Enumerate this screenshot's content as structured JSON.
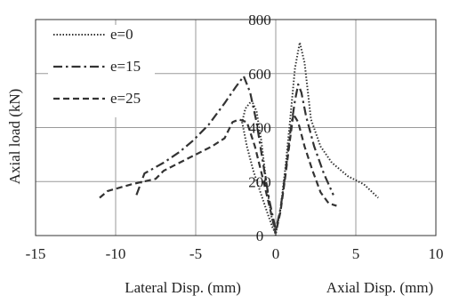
{
  "chart_data": {
    "type": "line",
    "title": "",
    "ylabel": "Axial load (kN)",
    "xlabel_left": "Lateral Disp. (mm)",
    "xlabel_right": "Axial Disp. (mm)",
    "xlim": [
      -15,
      10
    ],
    "ylim": [
      0,
      800
    ],
    "xticks": [
      -15,
      -10,
      -5,
      0,
      5,
      10
    ],
    "yticks": [
      0,
      200,
      400,
      600,
      800
    ],
    "grid": true,
    "legend_position": "top-left",
    "series": [
      {
        "name": "e=0",
        "style": "dotted",
        "color": "#333333",
        "points": [
          [
            0,
            0
          ],
          [
            -0.3,
            80
          ],
          [
            -0.6,
            200
          ],
          [
            -0.9,
            350
          ],
          [
            -1.2,
            460
          ],
          [
            -1.5,
            500
          ],
          [
            -1.9,
            470
          ],
          [
            -2.1,
            420
          ],
          [
            -1.8,
            330
          ],
          [
            -1.4,
            240
          ],
          [
            -0.9,
            150
          ],
          [
            -0.5,
            80
          ],
          [
            -0.2,
            30
          ],
          [
            0,
            5
          ],
          [
            0.3,
            100
          ],
          [
            0.6,
            250
          ],
          [
            0.9,
            430
          ],
          [
            1.2,
            620
          ],
          [
            1.5,
            715
          ],
          [
            1.8,
            640
          ],
          [
            2.2,
            430
          ],
          [
            2.8,
            330
          ],
          [
            3.5,
            270
          ],
          [
            4.5,
            220
          ],
          [
            5.5,
            190
          ],
          [
            6.4,
            140
          ]
        ]
      },
      {
        "name": "e=15",
        "style": "dashdot",
        "color": "#333333",
        "points": [
          [
            -8.7,
            150
          ],
          [
            -8.2,
            230
          ],
          [
            -7.0,
            270
          ],
          [
            -6.0,
            310
          ],
          [
            -5.2,
            350
          ],
          [
            -4.2,
            410
          ],
          [
            -3.2,
            490
          ],
          [
            -2.5,
            550
          ],
          [
            -2.0,
            590
          ],
          [
            -1.6,
            530
          ],
          [
            -1.2,
            420
          ],
          [
            -0.8,
            270
          ],
          [
            -0.4,
            130
          ],
          [
            0,
            20
          ],
          [
            0.3,
            100
          ],
          [
            0.6,
            230
          ],
          [
            0.9,
            380
          ],
          [
            1.2,
            500
          ],
          [
            1.4,
            560
          ],
          [
            1.6,
            530
          ],
          [
            1.9,
            440
          ],
          [
            2.4,
            330
          ],
          [
            3.0,
            230
          ],
          [
            3.6,
            150
          ]
        ]
      },
      {
        "name": "e=25",
        "style": "dashed",
        "color": "#333333",
        "points": [
          [
            -11.0,
            140
          ],
          [
            -10.5,
            165
          ],
          [
            -9.0,
            190
          ],
          [
            -7.5,
            210
          ],
          [
            -7.0,
            240
          ],
          [
            -5.5,
            285
          ],
          [
            -4.0,
            330
          ],
          [
            -3.2,
            360
          ],
          [
            -2.7,
            420
          ],
          [
            -2.3,
            430
          ],
          [
            -1.8,
            420
          ],
          [
            -1.3,
            330
          ],
          [
            -0.8,
            210
          ],
          [
            -0.4,
            110
          ],
          [
            0,
            10
          ],
          [
            0.3,
            90
          ],
          [
            0.6,
            220
          ],
          [
            0.9,
            360
          ],
          [
            1.1,
            450
          ],
          [
            1.4,
            420
          ],
          [
            1.8,
            330
          ],
          [
            2.3,
            240
          ],
          [
            2.8,
            160
          ],
          [
            3.3,
            120
          ],
          [
            3.8,
            110
          ]
        ]
      }
    ]
  }
}
